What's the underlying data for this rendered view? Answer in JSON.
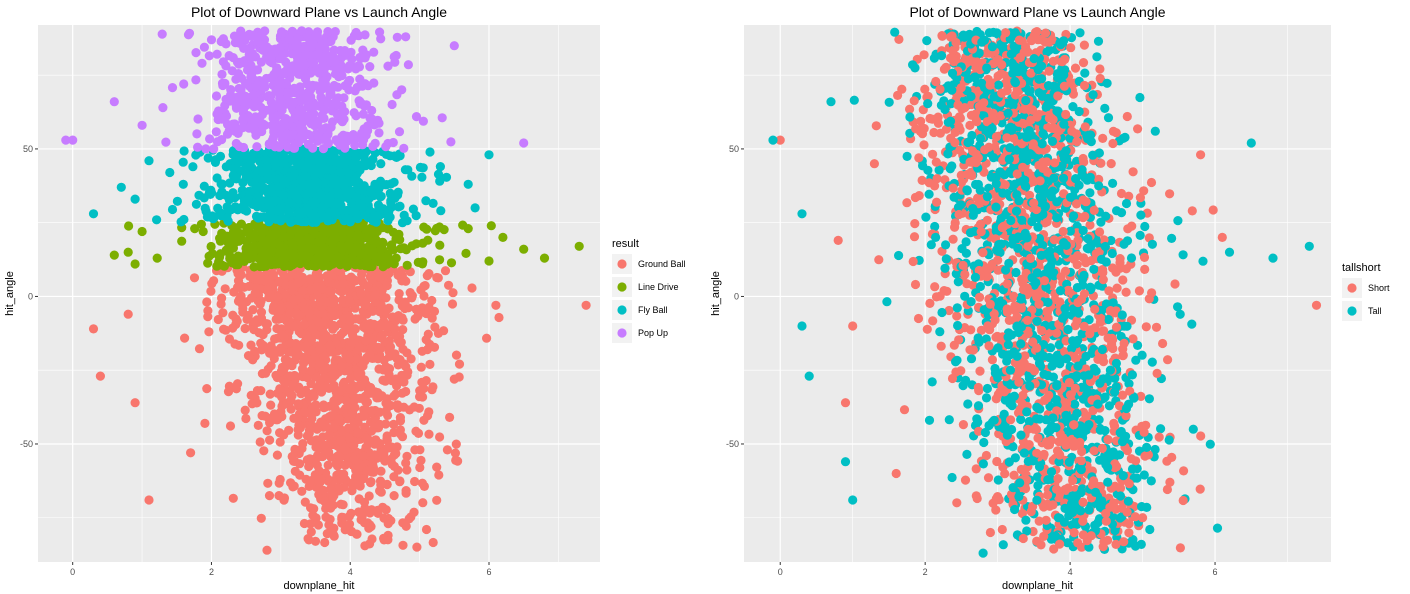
{
  "chart_data": [
    {
      "type": "scatter",
      "title": "Plot of Downward Plane vs Launch Angle",
      "xlabel": "downplane_hit",
      "ylabel": "hit_angle",
      "xlim": [
        -0.5,
        7.6
      ],
      "ylim": [
        -90,
        92
      ],
      "x_ticks": [
        0,
        2,
        4,
        6
      ],
      "y_ticks": [
        -50,
        0,
        50
      ],
      "grid": true,
      "legend": {
        "title": "result",
        "placement": "right",
        "entries": [
          {
            "name": "Ground Ball",
            "color": "#F8766D"
          },
          {
            "name": "Line Drive",
            "color": "#7CAE00"
          },
          {
            "name": "Fly Ball",
            "color": "#00BFC4"
          },
          {
            "name": "Pop Up",
            "color": "#C77CFF"
          }
        ]
      },
      "series": [
        {
          "name": "Ground Ball",
          "color": "#F8766D",
          "y_range": [
            -86,
            10
          ],
          "points": [
            [
              7.4,
              -3
            ],
            [
              0.3,
              -11
            ],
            [
              0.4,
              -27
            ],
            [
              1.1,
              -69
            ],
            [
              0.9,
              -36
            ],
            [
              5.4,
              -52
            ],
            [
              5.5,
              -28
            ],
            [
              6.1,
              -3
            ],
            [
              2.8,
              -86
            ],
            [
              3.5,
              -83
            ],
            [
              0.8,
              -6
            ],
            [
              4.3,
              -78
            ],
            [
              1.7,
              -53
            ],
            [
              5.1,
              -79
            ]
          ]
        },
        {
          "name": "Line Drive",
          "color": "#7CAE00",
          "y_range": [
            10,
            25
          ],
          "points": [
            [
              7.3,
              17
            ],
            [
              6.8,
              13
            ],
            [
              0.6,
              14
            ],
            [
              0.8,
              15
            ],
            [
              1.0,
              22
            ],
            [
              6.2,
              20
            ],
            [
              6.0,
              12
            ],
            [
              6.5,
              16
            ],
            [
              0.9,
              11
            ],
            [
              5.7,
              23
            ]
          ]
        },
        {
          "name": "Fly Ball",
          "color": "#00BFC4",
          "y_range": [
            25,
            50
          ],
          "points": [
            [
              0.3,
              28
            ],
            [
              0.7,
              37
            ],
            [
              1.1,
              46
            ],
            [
              6.0,
              48
            ],
            [
              5.7,
              38
            ],
            [
              5.8,
              30
            ],
            [
              0.9,
              33
            ],
            [
              1.4,
              42
            ],
            [
              5.3,
              44
            ]
          ]
        },
        {
          "name": "Pop Up",
          "color": "#C77CFF",
          "y_range": [
            50,
            90
          ],
          "points": [
            [
              -0.1,
              53
            ],
            [
              0.0,
              53
            ],
            [
              6.5,
              52
            ],
            [
              5.5,
              85
            ],
            [
              0.6,
              66
            ],
            [
              1.0,
              58
            ],
            [
              1.3,
              64
            ],
            [
              1.6,
              72
            ],
            [
              4.8,
              88
            ],
            [
              3.3,
              90
            ],
            [
              2.0,
              87
            ]
          ]
        }
      ]
    },
    {
      "type": "scatter",
      "title": "Plot of Downward Plane vs Launch Angle",
      "xlabel": "downplane_hit",
      "ylabel": "hit_angle",
      "xlim": [
        -0.5,
        7.6
      ],
      "ylim": [
        -90,
        92
      ],
      "x_ticks": [
        0,
        2,
        4,
        6
      ],
      "y_ticks": [
        -50,
        0,
        50
      ],
      "grid": true,
      "legend": {
        "title": "tallshort",
        "placement": "right",
        "entries": [
          {
            "name": "Short",
            "color": "#F8766D"
          },
          {
            "name": "Tall",
            "color": "#00BFC4"
          }
        ]
      },
      "series": [
        {
          "name": "Short",
          "color": "#F8766D",
          "points": [
            [
              7.4,
              -3
            ],
            [
              0.0,
              53
            ],
            [
              6.1,
              20
            ],
            [
              5.8,
              48
            ],
            [
              0.8,
              19
            ],
            [
              1.0,
              -10
            ],
            [
              0.9,
              -36
            ],
            [
              1.6,
              -60
            ],
            [
              2.9,
              -80
            ],
            [
              5.0,
              -75
            ],
            [
              4.6,
              -70
            ],
            [
              1.3,
              45
            ]
          ]
        },
        {
          "name": "Tall",
          "color": "#00BFC4",
          "points": [
            [
              -0.1,
              53
            ],
            [
              7.3,
              17
            ],
            [
              6.8,
              13
            ],
            [
              6.5,
              52
            ],
            [
              0.3,
              28
            ],
            [
              0.3,
              -10
            ],
            [
              0.4,
              -27
            ],
            [
              1.0,
              -69
            ],
            [
              0.9,
              -56
            ],
            [
              2.8,
              -87
            ],
            [
              5.1,
              -79
            ],
            [
              5.7,
              -45
            ],
            [
              6.2,
              15
            ],
            [
              0.7,
              66
            ]
          ]
        }
      ]
    }
  ]
}
